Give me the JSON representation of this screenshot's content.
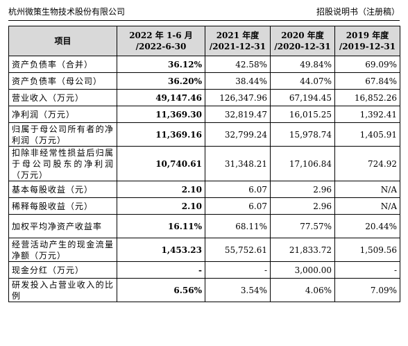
{
  "header": {
    "company": "杭州微策生物技术股份有限公司",
    "doc_type": "招股说明书（注册稿）"
  },
  "table": {
    "columns": [
      {
        "line1": "项目",
        "line2": ""
      },
      {
        "line1": "2022 年 1-6 月",
        "line2": "/2022-6-30"
      },
      {
        "line1": "2021 年度",
        "line2": "/2021-12-31"
      },
      {
        "line1": "2020 年度",
        "line2": "/2020-12-31"
      },
      {
        "line1": "2019 年度",
        "line2": "/2019-12-31"
      }
    ],
    "rows": [
      {
        "label": "资产负债率（合并）",
        "values": [
          "36.12%",
          "42.58%",
          "49.84%",
          "69.09%"
        ]
      },
      {
        "label": "资产负债率（母公司）",
        "values": [
          "36.20%",
          "38.44%",
          "44.07%",
          "67.84%"
        ]
      },
      {
        "label": "营业收入（万元）",
        "values": [
          "49,147.46",
          "126,347.96",
          "67,194.45",
          "16,852.26"
        ]
      },
      {
        "label": "净利润（万元）",
        "values": [
          "11,369.30",
          "32,819.47",
          "16,015.25",
          "1,392.41"
        ]
      },
      {
        "label": "归属于母公司所有者的净利润（万元）",
        "values": [
          "11,369.16",
          "32,799.24",
          "15,978.74",
          "1,405.91"
        ]
      },
      {
        "label": "扣除非经常性损益后归属于母公司股东的净利润（万元）",
        "values": [
          "10,740.61",
          "31,348.21",
          "17,106.84",
          "724.92"
        ]
      },
      {
        "label": "基本每股收益（元）",
        "values": [
          "2.10",
          "6.07",
          "2.96",
          "N/A"
        ]
      },
      {
        "label": "稀释每股收益（元）",
        "values": [
          "2.10",
          "6.07",
          "2.96",
          "N/A"
        ]
      },
      {
        "label": "加权平均净资产收益率",
        "values": [
          "16.11%",
          "68.11%",
          "77.57%",
          "20.44%"
        ]
      },
      {
        "label": "经营活动产生的现金流量净额（万元）",
        "values": [
          "1,453.23",
          "55,752.61",
          "21,833.72",
          "1,509.56"
        ]
      },
      {
        "label": "现金分红（万元）",
        "values": [
          "-",
          "-",
          "3,000.00",
          "-"
        ]
      },
      {
        "label": "研发投入占营业收入的比例",
        "values": [
          "6.56%",
          "3.54%",
          "4.06%",
          "7.09%"
        ]
      }
    ]
  }
}
